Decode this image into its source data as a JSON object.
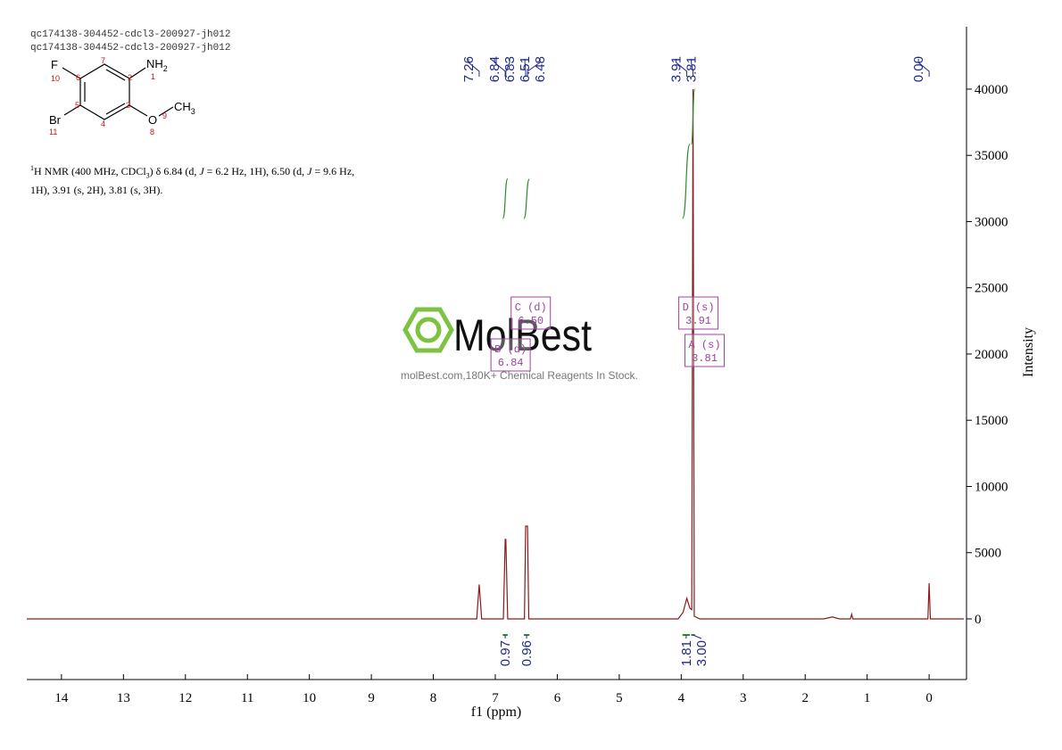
{
  "header": {
    "lines": [
      "qc174138-304452-cdcl3-200927-jh012",
      "qc174138-304452-cdcl3-200927-jh012"
    ]
  },
  "structure": {
    "texts": [
      "F",
      "NH",
      "2",
      "Br",
      "O",
      "CH",
      "3"
    ],
    "numbers": [
      10,
      6,
      7,
      2,
      1,
      5,
      3,
      4,
      9,
      8,
      11
    ]
  },
  "description": {
    "line1": [
      "1",
      "H NMR (400 MHz, CDCl",
      "3",
      ") δ 6.84 (d, ",
      "J",
      " = 6.2 Hz, 1H), 6.50 (d, ",
      "J",
      " = 9.6 Hz,"
    ],
    "line2": "1H), 3.91 (s, 2H), 3.81 (s, 3H)."
  },
  "watermark": {
    "logo": "MolBest",
    "tagline": "molBest.com,180K+ Chemical Reagents In Stock."
  },
  "chart_data": {
    "type": "line",
    "x_label": "f1 (ppm)",
    "y_label": "Intensity",
    "color": "#8b1a1a",
    "xlim": [
      14.56,
      -0.56
    ],
    "xticks": [
      14,
      13,
      12,
      11,
      10,
      9,
      8,
      7,
      6,
      5,
      4,
      3,
      2,
      1,
      0
    ],
    "ylim": [
      -4580,
      44710
    ],
    "yticks": [
      0,
      5000,
      10000,
      15000,
      20000,
      25000,
      30000,
      35000,
      40000
    ],
    "x": [
      14.56,
      7.3,
      7.26,
      7.22,
      6.87,
      6.84,
      6.83,
      6.8,
      6.53,
      6.51,
      6.48,
      6.46,
      4.05,
      3.97,
      3.91,
      3.86,
      3.83,
      3.81,
      3.79,
      3.7,
      1.7,
      1.56,
      1.45,
      1.27,
      1.25,
      1.23,
      0.02,
      0,
      -0.02,
      -0.56
    ],
    "values": [
      0,
      0,
      2600,
      0,
      0,
      6000,
      6000,
      0,
      0,
      7000,
      7000,
      0,
      0,
      500,
      1550,
      800,
      700,
      40000,
      200,
      0,
      0,
      150,
      0,
      0,
      350,
      0,
      0,
      2700,
      0,
      0
    ],
    "peak_labels": {
      "values": [
        7.26,
        6.84,
        6.83,
        6.51,
        6.48,
        3.91,
        3.81,
        0
      ],
      "value_labels": [
        "7.26",
        "6.84",
        "6.83",
        "6.51",
        "6.48",
        "3.91",
        "3.81",
        "0.00"
      ]
    },
    "integrals": {
      "color": "#2e8b2e",
      "ranges": [
        [
          6.88,
          6.8
        ],
        [
          6.54,
          6.45
        ],
        [
          3.98,
          3.86
        ],
        [
          3.84,
          3.78
        ]
      ],
      "values": [
        0.97,
        0.96,
        1.81,
        3
      ],
      "value_labels": [
        "0.97",
        "0.96",
        "1.81",
        "3.00"
      ]
    },
    "multiplets": [
      {
        "name": "C (d)",
        "shift": {
          "value": 6.5,
          "label": "6.50"
        }
      },
      {
        "name": "B (d)",
        "shift": 6.84
      },
      {
        "name": "D (s)",
        "shift": 3.91
      },
      {
        "name": "A (s)",
        "shift": 3.81
      }
    ]
  }
}
